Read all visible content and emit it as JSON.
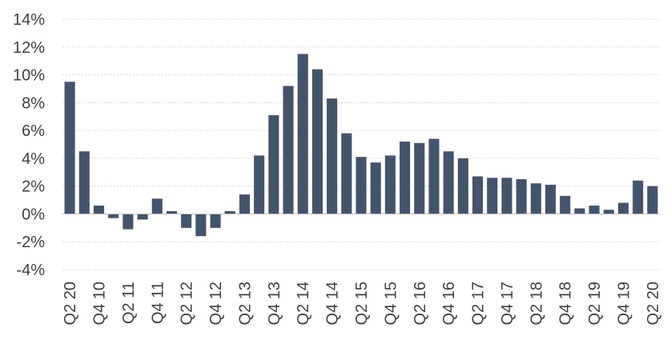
{
  "chart_data": {
    "type": "bar",
    "categories": [
      "Q2 20",
      "Q3 10",
      "Q4 10",
      "Q1 11",
      "Q2 11",
      "Q3 11",
      "Q4 11",
      "Q1 12",
      "Q2 12",
      "Q3 12",
      "Q4 12",
      "Q1 13",
      "Q2 13",
      "Q3 13",
      "Q4 13",
      "Q1 14",
      "Q2 14",
      "Q3 14",
      "Q4 14",
      "Q1 15",
      "Q2 15",
      "Q3 15",
      "Q4 15",
      "Q1 16",
      "Q2 16",
      "Q3 16",
      "Q4 16",
      "Q1 17",
      "Q2 17",
      "Q3 17",
      "Q4 17",
      "Q1 18",
      "Q2 18",
      "Q3 18",
      "Q4 18",
      "Q1 19",
      "Q2 19",
      "Q3 19",
      "Q4 19",
      "Q1 20",
      "Q2 20"
    ],
    "visible_tick_labels": [
      "Q2 20",
      "Q4 10",
      "Q2 11",
      "Q4 11",
      "Q2 12",
      "Q4 12",
      "Q2 13",
      "Q4 13",
      "Q2 14",
      "Q4 14",
      "Q2 15",
      "Q4 15",
      "Q2 16",
      "Q4 16",
      "Q2 17",
      "Q4 17",
      "Q2 18",
      "Q4 18",
      "Q2 19",
      "Q4 19",
      "Q2 20"
    ],
    "values": [
      9.5,
      4.5,
      0.6,
      -0.3,
      -1.1,
      -0.4,
      1.1,
      0.2,
      -1.0,
      -1.6,
      -1.0,
      0.2,
      1.4,
      4.2,
      7.1,
      9.2,
      11.5,
      10.4,
      8.3,
      5.8,
      4.1,
      3.7,
      4.2,
      5.2,
      5.1,
      5.4,
      4.5,
      4.0,
      2.7,
      2.6,
      2.6,
      2.5,
      2.2,
      2.1,
      1.3,
      0.4,
      0.6,
      0.3,
      0.8,
      2.4,
      2.0
    ],
    "y_ticks": [
      "14%",
      "12%",
      "10%",
      "8%",
      "6%",
      "4%",
      "2%",
      "0%",
      "-2%",
      "-4%"
    ],
    "ylim": [
      -4,
      14
    ],
    "y_step": 2,
    "grid": true,
    "bar_color": "#44546a",
    "title": "",
    "xlabel": "",
    "ylabel": ""
  }
}
